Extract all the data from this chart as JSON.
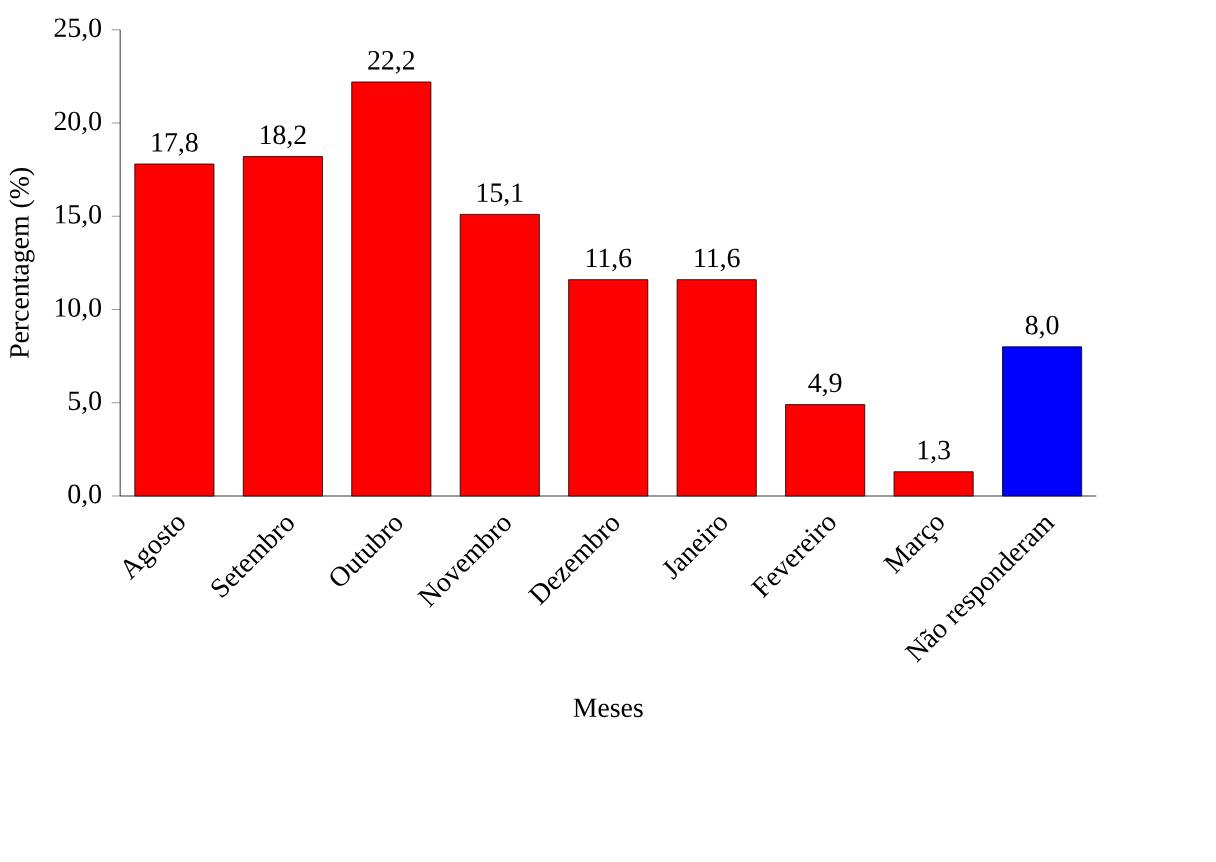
{
  "chart_data": {
    "type": "bar",
    "xlabel": "Meses",
    "ylabel": "Percentagem (%)",
    "categories": [
      "Agosto",
      "Setembro",
      "Outubro",
      "Novembro",
      "Dezembro",
      "Janeiro",
      "Fevereiro",
      "Março",
      "Não responderam"
    ],
    "values": [
      17.8,
      18.2,
      22.2,
      15.1,
      11.6,
      11.6,
      4.9,
      1.3,
      8.0
    ],
    "colors": [
      "#ff0000",
      "#ff0000",
      "#ff0000",
      "#ff0000",
      "#ff0000",
      "#ff0000",
      "#ff0000",
      "#ff0000",
      "#0000ff"
    ],
    "value_labels": [
      "17,8",
      "18,2",
      "22,2",
      "15,1",
      "11,6",
      "11,6",
      "4,9",
      "1,3",
      "8,0"
    ],
    "ylim": [
      0,
      25
    ],
    "yticks": [
      {
        "value": 0,
        "label": "0,0"
      },
      {
        "value": 5,
        "label": "5,0"
      },
      {
        "value": 10,
        "label": "10,0"
      },
      {
        "value": 15,
        "label": "15,0"
      },
      {
        "value": 20,
        "label": "20,0"
      },
      {
        "value": 25,
        "label": "25,0"
      }
    ]
  }
}
